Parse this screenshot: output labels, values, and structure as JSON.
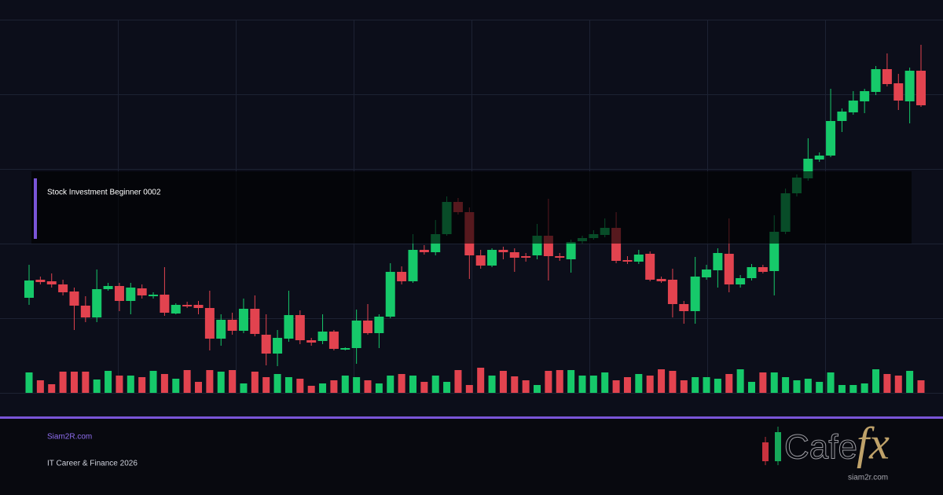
{
  "chart_data": {
    "type": "candlestick",
    "open": [
      121,
      144,
      142,
      138,
      129,
      111,
      96,
      132,
      136,
      117,
      133,
      123,
      125,
      101,
      112,
      112,
      108,
      69,
      93,
      79,
      107,
      74,
      50,
      69,
      99,
      67,
      66,
      78,
      55,
      57,
      92,
      76,
      97,
      154,
      142,
      182,
      179,
      202,
      243,
      230,
      175,
      162,
      182,
      179,
      174,
      175,
      200,
      174,
      170,
      193,
      197,
      201,
      210,
      169,
      167,
      177,
      145,
      144,
      113,
      104,
      147,
      156,
      177,
      138,
      146,
      160,
      155,
      205,
      254,
      273,
      297,
      302,
      346,
      357,
      371,
      383,
      412,
      394,
      371,
      410
    ],
    "high": [
      163,
      148,
      152,
      144,
      134,
      123,
      157,
      140,
      140,
      140,
      138,
      128,
      160,
      114,
      116,
      117,
      130,
      100,
      102,
      120,
      124,
      100,
      80,
      130,
      105,
      70,
      100,
      80,
      58,
      106,
      113,
      100,
      165,
      161,
      202,
      188,
      220,
      250,
      248,
      236,
      182,
      184,
      186,
      184,
      178,
      215,
      247,
      178,
      195,
      200,
      207,
      222,
      230,
      174,
      182,
      180,
      148,
      158,
      117,
      173,
      163,
      184,
      222,
      150,
      164,
      163,
      226,
      260,
      278,
      324,
      306,
      387,
      362,
      384,
      387,
      416,
      432,
      406,
      414,
      443
    ],
    "low": [
      112,
      138,
      134,
      124,
      80,
      90,
      90,
      130,
      104,
      100,
      120,
      120,
      98,
      100,
      108,
      100,
      54,
      60,
      74,
      76,
      72,
      35,
      34,
      65,
      62,
      60,
      62,
      54,
      54,
      37,
      74,
      57,
      95,
      138,
      140,
      176,
      175,
      200,
      227,
      145,
      158,
      160,
      170,
      154,
      167,
      170,
      143,
      168,
      153,
      190,
      195,
      198,
      165,
      164,
      164,
      142,
      140,
      96,
      88,
      88,
      144,
      134,
      128,
      134,
      143,
      152,
      124,
      202,
      250,
      270,
      294,
      300,
      332,
      354,
      356,
      379,
      390,
      360,
      343,
      364
    ],
    "close": [
      143,
      141,
      138,
      128,
      111,
      96,
      132,
      136,
      117,
      134,
      124,
      125,
      102,
      112,
      110,
      108,
      69,
      93,
      79,
      107,
      75,
      50,
      70,
      99,
      67,
      64,
      78,
      56,
      57,
      92,
      76,
      97,
      154,
      142,
      182,
      179,
      202,
      243,
      230,
      175,
      162,
      182,
      179,
      172,
      172,
      200,
      174,
      172,
      192,
      197,
      202,
      210,
      168,
      167,
      176,
      144,
      142,
      113,
      104,
      148,
      157,
      178,
      138,
      146,
      160,
      154,
      205,
      254,
      274,
      298,
      302,
      346,
      358,
      372,
      384,
      412,
      393,
      372,
      410,
      366
    ],
    "volume": [
      26,
      16,
      11,
      27,
      27,
      27,
      17,
      28,
      22,
      22,
      20,
      28,
      24,
      18,
      29,
      14,
      29,
      27,
      29,
      12,
      27,
      20,
      24,
      20,
      18,
      9,
      12,
      16,
      22,
      20,
      16,
      12,
      22,
      24,
      22,
      14,
      22,
      14,
      29,
      10,
      32,
      22,
      28,
      21,
      16,
      10,
      28,
      29,
      29,
      22,
      22,
      26,
      16,
      20,
      24,
      22,
      30,
      28,
      16,
      20,
      20,
      18,
      24,
      30,
      14,
      26,
      26,
      20,
      16,
      18,
      14,
      26,
      10,
      10,
      12,
      30,
      24,
      22,
      28,
      16
    ],
    "up_color": "#16c96a",
    "down_color": "#e2434f",
    "ylim": [
      0,
      475
    ],
    "yticks": [
      0,
      95,
      190,
      285,
      380,
      475
    ],
    "grid": true
  },
  "overlay": {
    "title": "Stock Investment Beginner 0002"
  },
  "footer": {
    "site": "Siam2R.com",
    "tagline": "IT Career & Finance 2026"
  },
  "logo": {
    "word": "Cafe",
    "accent": "fx",
    "url": "siam2r.com"
  }
}
